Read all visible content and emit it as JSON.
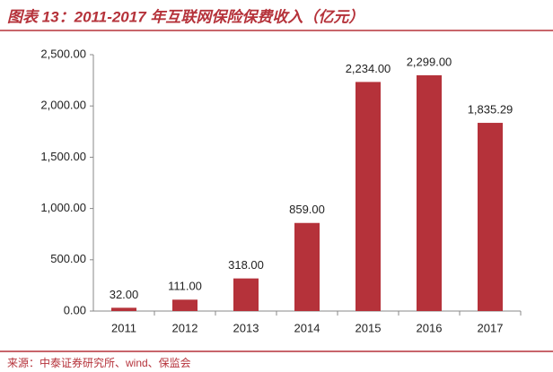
{
  "chart_data": {
    "type": "bar",
    "title": "图表 13：2011-2017 年互联网保险保费收入（亿元）",
    "source": "来源：中泰证券研究所、wind、保监会",
    "categories": [
      "2011",
      "2012",
      "2013",
      "2014",
      "2015",
      "2016",
      "2017"
    ],
    "values": [
      32,
      111,
      318,
      859,
      2234,
      2299,
      1835.29
    ],
    "value_labels": [
      "32.00",
      "111.00",
      "318.00",
      "859.00",
      "2,234.00",
      "2,299.00",
      "1,835.29"
    ],
    "color": "#b5323a",
    "ylim": [
      0,
      2500
    ],
    "yticks": [
      {
        "value": 0,
        "label": "0.00"
      },
      {
        "value": 500,
        "label": "500.00"
      },
      {
        "value": 1000,
        "label": "1,000.00"
      },
      {
        "value": 1500,
        "label": "1,500.00"
      },
      {
        "value": 2000,
        "label": "2,000.00"
      },
      {
        "value": 2500,
        "label": "2,500.00"
      }
    ],
    "grid": false
  }
}
